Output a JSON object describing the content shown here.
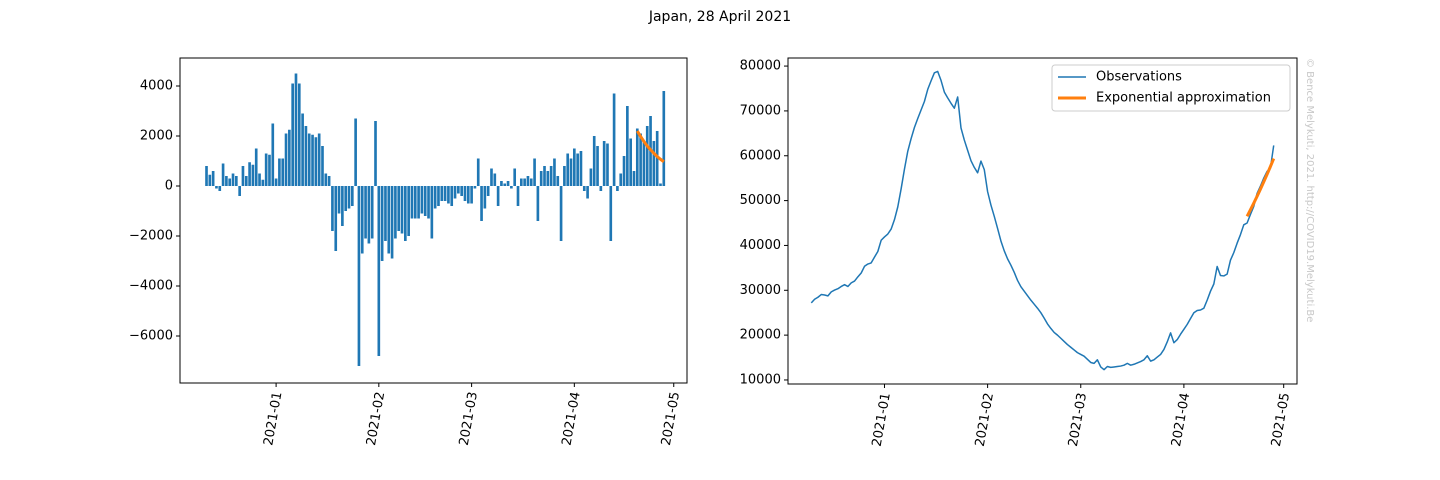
{
  "title": "Japan, 28 April 2021",
  "watermark": "© Bence Melykuti, 2021. http://COVID19.Melykuti.Be",
  "chart_data": [
    {
      "type": "bar",
      "color": "#1f77b4",
      "x": [
        "2020-12-11",
        "2020-12-12",
        "2020-12-13",
        "2020-12-14",
        "2020-12-15",
        "2020-12-16",
        "2020-12-17",
        "2020-12-18",
        "2020-12-19",
        "2020-12-20",
        "2020-12-21",
        "2020-12-22",
        "2020-12-23",
        "2020-12-24",
        "2020-12-25",
        "2020-12-26",
        "2020-12-27",
        "2020-12-28",
        "2020-12-29",
        "2020-12-30",
        "2020-12-31",
        "2021-01-01",
        "2021-01-02",
        "2021-01-03",
        "2021-01-04",
        "2021-01-05",
        "2021-01-06",
        "2021-01-07",
        "2021-01-08",
        "2021-01-09",
        "2021-01-10",
        "2021-01-11",
        "2021-01-12",
        "2021-01-13",
        "2021-01-14",
        "2021-01-15",
        "2021-01-16",
        "2021-01-17",
        "2021-01-18",
        "2021-01-19",
        "2021-01-20",
        "2021-01-21",
        "2021-01-22",
        "2021-01-23",
        "2021-01-24",
        "2021-01-25",
        "2021-01-26",
        "2021-01-27",
        "2021-01-28",
        "2021-01-29",
        "2021-01-30",
        "2021-01-31",
        "2021-02-01",
        "2021-02-02",
        "2021-02-03",
        "2021-02-04",
        "2021-02-05",
        "2021-02-06",
        "2021-02-07",
        "2021-02-08",
        "2021-02-09",
        "2021-02-10",
        "2021-02-11",
        "2021-02-12",
        "2021-02-13",
        "2021-02-14",
        "2021-02-15",
        "2021-02-16",
        "2021-02-17",
        "2021-02-18",
        "2021-02-19",
        "2021-02-20",
        "2021-02-21",
        "2021-02-22",
        "2021-02-23",
        "2021-02-24",
        "2021-02-25",
        "2021-02-26",
        "2021-02-27",
        "2021-02-28",
        "2021-03-01",
        "2021-03-02",
        "2021-03-03",
        "2021-03-04",
        "2021-03-05",
        "2021-03-06",
        "2021-03-07",
        "2021-03-08",
        "2021-03-09",
        "2021-03-10",
        "2021-03-11",
        "2021-03-12",
        "2021-03-13",
        "2021-03-14",
        "2021-03-15",
        "2021-03-16",
        "2021-03-17",
        "2021-03-18",
        "2021-03-19",
        "2021-03-20",
        "2021-03-21",
        "2021-03-22",
        "2021-03-23",
        "2021-03-24",
        "2021-03-25",
        "2021-03-26",
        "2021-03-27",
        "2021-03-28",
        "2021-03-29",
        "2021-03-30",
        "2021-03-31",
        "2021-04-01",
        "2021-04-02",
        "2021-04-03",
        "2021-04-04",
        "2021-04-05",
        "2021-04-06",
        "2021-04-07",
        "2021-04-08",
        "2021-04-09",
        "2021-04-10",
        "2021-04-11",
        "2021-04-12",
        "2021-04-13",
        "2021-04-14",
        "2021-04-15",
        "2021-04-16",
        "2021-04-17",
        "2021-04-18",
        "2021-04-19",
        "2021-04-20",
        "2021-04-21",
        "2021-04-22",
        "2021-04-23",
        "2021-04-24",
        "2021-04-25",
        "2021-04-26",
        "2021-04-27",
        "2021-04-28"
      ],
      "values": [
        800,
        450,
        600,
        -100,
        -200,
        900,
        400,
        300,
        500,
        400,
        -400,
        800,
        400,
        950,
        850,
        1500,
        500,
        250,
        1300,
        1250,
        2500,
        300,
        1100,
        1100,
        2100,
        2250,
        4100,
        4500,
        4100,
        2900,
        2400,
        2100,
        2050,
        1950,
        2100,
        1600,
        500,
        400,
        -1800,
        -2600,
        -1100,
        -1600,
        -1000,
        -900,
        -800,
        2700,
        -7200,
        -2700,
        -2100,
        -2300,
        -2100,
        2600,
        -6800,
        -3000,
        -2200,
        -2700,
        -2900,
        -2100,
        -1800,
        -1900,
        -2200,
        -2000,
        -1300,
        -1300,
        -1300,
        -1100,
        -1200,
        -1300,
        -2100,
        -900,
        -800,
        -600,
        -600,
        -700,
        -800,
        -500,
        -300,
        -400,
        -600,
        -700,
        -700,
        -100,
        1100,
        -1400,
        -900,
        -400,
        700,
        500,
        -800,
        200,
        100,
        200,
        -100,
        700,
        -800,
        300,
        300,
        400,
        300,
        1100,
        -1400,
        600,
        800,
        600,
        800,
        1100,
        400,
        -2200,
        800,
        1300,
        1100,
        1500,
        1300,
        1400,
        -200,
        -500,
        700,
        2000,
        1600,
        -200,
        1800,
        1700,
        -2200,
        3700,
        -200,
        500,
        1200,
        3200,
        1900,
        600,
        2300,
        2100,
        1800,
        2400,
        2800,
        1800,
        2200,
        100,
        3800
      ],
      "series": [
        {
          "color": "#ff7f0e",
          "x": [
            "2021-04-20",
            "2021-04-21",
            "2021-04-22",
            "2021-04-23",
            "2021-04-24",
            "2021-04-25",
            "2021-04-26",
            "2021-04-27",
            "2021-04-28"
          ],
          "values": [
            2200,
            1980,
            1780,
            1600,
            1450,
            1310,
            1180,
            1070,
            970
          ]
        }
      ],
      "xlim": [
        "2020-12-03",
        "2021-05-05"
      ],
      "xticks": [
        {
          "value": "2021-01-01",
          "label": "2021-01"
        },
        {
          "value": "2021-02-01",
          "label": "2021-02"
        },
        {
          "value": "2021-03-01",
          "label": "2021-03"
        },
        {
          "value": "2021-04-01",
          "label": "2021-04"
        },
        {
          "value": "2021-05-01",
          "label": "2021-05"
        }
      ],
      "ylim": [
        -7880,
        5120
      ],
      "yticks": [
        {
          "value": -6000,
          "label": "−6000"
        },
        {
          "value": -4000,
          "label": "−4000"
        },
        {
          "value": -2000,
          "label": "−2000"
        },
        0,
        2000,
        4000
      ]
    },
    {
      "type": "line",
      "legend": "upper right",
      "series": [
        {
          "name": "Observations",
          "color": "#1f77b4",
          "x": [
            "2020-12-10",
            "2020-12-11",
            "2020-12-12",
            "2020-12-13",
            "2020-12-14",
            "2020-12-15",
            "2020-12-16",
            "2020-12-17",
            "2020-12-18",
            "2020-12-19",
            "2020-12-20",
            "2020-12-21",
            "2020-12-22",
            "2020-12-23",
            "2020-12-24",
            "2020-12-25",
            "2020-12-26",
            "2020-12-27",
            "2020-12-28",
            "2020-12-29",
            "2020-12-30",
            "2020-12-31",
            "2021-01-01",
            "2021-01-02",
            "2021-01-03",
            "2021-01-04",
            "2021-01-05",
            "2021-01-06",
            "2021-01-07",
            "2021-01-08",
            "2021-01-09",
            "2021-01-10",
            "2021-01-11",
            "2021-01-12",
            "2021-01-13",
            "2021-01-14",
            "2021-01-15",
            "2021-01-16",
            "2021-01-17",
            "2021-01-18",
            "2021-01-19",
            "2021-01-20",
            "2021-01-21",
            "2021-01-22",
            "2021-01-23",
            "2021-01-24",
            "2021-01-25",
            "2021-01-26",
            "2021-01-27",
            "2021-01-28",
            "2021-01-29",
            "2021-01-30",
            "2021-01-31",
            "2021-02-01",
            "2021-02-02",
            "2021-02-03",
            "2021-02-04",
            "2021-02-05",
            "2021-02-06",
            "2021-02-07",
            "2021-02-08",
            "2021-02-09",
            "2021-02-10",
            "2021-02-11",
            "2021-02-12",
            "2021-02-13",
            "2021-02-14",
            "2021-02-15",
            "2021-02-16",
            "2021-02-17",
            "2021-02-18",
            "2021-02-19",
            "2021-02-20",
            "2021-02-21",
            "2021-02-22",
            "2021-02-23",
            "2021-02-24",
            "2021-02-25",
            "2021-02-26",
            "2021-02-27",
            "2021-02-28",
            "2021-03-01",
            "2021-03-02",
            "2021-03-03",
            "2021-03-04",
            "2021-03-05",
            "2021-03-06",
            "2021-03-07",
            "2021-03-08",
            "2021-03-09",
            "2021-03-10",
            "2021-03-11",
            "2021-03-12",
            "2021-03-13",
            "2021-03-14",
            "2021-03-15",
            "2021-03-16",
            "2021-03-17",
            "2021-03-18",
            "2021-03-19",
            "2021-03-20",
            "2021-03-21",
            "2021-03-22",
            "2021-03-23",
            "2021-03-24",
            "2021-03-25",
            "2021-03-26",
            "2021-03-27",
            "2021-03-28",
            "2021-03-29",
            "2021-03-30",
            "2021-03-31",
            "2021-04-01",
            "2021-04-02",
            "2021-04-03",
            "2021-04-04",
            "2021-04-05",
            "2021-04-06",
            "2021-04-07",
            "2021-04-08",
            "2021-04-09",
            "2021-04-10",
            "2021-04-11",
            "2021-04-12",
            "2021-04-13",
            "2021-04-14",
            "2021-04-15",
            "2021-04-16",
            "2021-04-17",
            "2021-04-18",
            "2021-04-19",
            "2021-04-20",
            "2021-04-21",
            "2021-04-22",
            "2021-04-23",
            "2021-04-24",
            "2021-04-25",
            "2021-04-26",
            "2021-04-27",
            "2021-04-28"
          ],
          "values": [
            27200,
            28000,
            28450,
            29050,
            28950,
            28750,
            29650,
            30050,
            30350,
            30850,
            31250,
            30850,
            31650,
            32050,
            33000,
            33850,
            35350,
            35850,
            36100,
            37400,
            38650,
            41150,
            41900,
            42550,
            43650,
            45750,
            48600,
            52600,
            57000,
            61000,
            63800,
            66300,
            68300,
            70200,
            72100,
            74800,
            76700,
            78500,
            78800,
            76800,
            74200,
            72900,
            71700,
            70600,
            73100,
            66200,
            63500,
            61200,
            58900,
            57400,
            56200,
            58800,
            56900,
            52000,
            49000,
            46500,
            43800,
            41000,
            38800,
            37000,
            35600,
            34000,
            32200,
            30800,
            29800,
            28800,
            27800,
            26900,
            26000,
            25000,
            23800,
            22500,
            21500,
            20600,
            20000,
            19300,
            18600,
            17900,
            17300,
            16700,
            16100,
            15700,
            15300,
            14600,
            13900,
            13700,
            14500,
            12900,
            12300,
            13000,
            12800,
            12900,
            13000,
            13100,
            13300,
            13700,
            13300,
            13500,
            13800,
            14100,
            14500,
            15400,
            14200,
            14500,
            15100,
            15700,
            16800,
            18500,
            20500,
            18300,
            19000,
            20200,
            21300,
            22400,
            23700,
            25000,
            25500,
            25600,
            26000,
            27800,
            29800,
            31400,
            35300,
            33300,
            33200,
            33600,
            36700,
            38400,
            40500,
            42400,
            44600,
            45000,
            46900,
            48700,
            51600,
            53200,
            55000,
            56500,
            57200,
            62300
          ]
        },
        {
          "name": "Exponential approximation",
          "color": "#ff7f0e",
          "x": [
            "2021-04-20",
            "2021-04-21",
            "2021-04-22",
            "2021-04-23",
            "2021-04-24",
            "2021-04-25",
            "2021-04-26",
            "2021-04-27",
            "2021-04-28"
          ],
          "values": [
            46500,
            47940,
            49430,
            50960,
            52540,
            54170,
            55850,
            57580,
            59370
          ]
        }
      ],
      "xlim": [
        "2020-12-03",
        "2021-05-05"
      ],
      "xticks": [
        {
          "value": "2021-01-01",
          "label": "2021-01"
        },
        {
          "value": "2021-02-01",
          "label": "2021-02"
        },
        {
          "value": "2021-03-01",
          "label": "2021-03"
        },
        {
          "value": "2021-04-01",
          "label": "2021-04"
        },
        {
          "value": "2021-05-01",
          "label": "2021-05"
        }
      ],
      "ylim": [
        9100,
        81800
      ],
      "yticks": [
        10000,
        20000,
        30000,
        40000,
        50000,
        60000,
        70000,
        80000
      ]
    }
  ]
}
